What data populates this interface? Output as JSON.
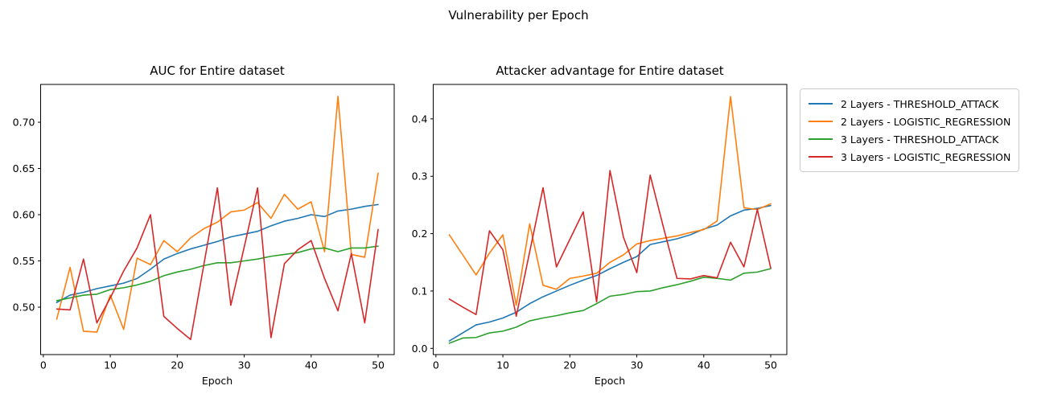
{
  "figure": {
    "suptitle": "Vulnerability per Epoch"
  },
  "colors": {
    "blue": "#1f77b4",
    "orange": "#ff7f0e",
    "green": "#2ca02c",
    "red": "#d62728",
    "spine": "#000000",
    "legend_border": "#cccccc"
  },
  "legend": {
    "items": [
      {
        "label": "2 Layers - THRESHOLD_ATTACK",
        "color": "#1f77b4"
      },
      {
        "label": "2 Layers - LOGISTIC_REGRESSION",
        "color": "#ff7f0e"
      },
      {
        "label": "3 Layers - THRESHOLD_ATTACK",
        "color": "#2ca02c"
      },
      {
        "label": "3 Layers - LOGISTIC_REGRESSION",
        "color": "#d62728"
      }
    ]
  },
  "chart_data": [
    {
      "type": "line",
      "title": "AUC for Entire dataset",
      "xlabel": "Epoch",
      "legend_position": "outside-right",
      "grid": false,
      "xlim": [
        -0.4,
        52.4
      ],
      "ylim": [
        0.4487,
        0.7409
      ],
      "xticks": [
        0,
        10,
        20,
        30,
        40,
        50
      ],
      "xtick_labels": [
        "0",
        "10",
        "20",
        "30",
        "40",
        "50"
      ],
      "yticks": [
        0.5,
        0.55,
        0.6,
        0.65,
        0.7
      ],
      "ytick_labels": [
        "0.50",
        "0.55",
        "0.60",
        "0.65",
        "0.70"
      ],
      "x": [
        2,
        4,
        6,
        8,
        10,
        12,
        14,
        16,
        18,
        20,
        22,
        24,
        26,
        28,
        30,
        32,
        34,
        36,
        38,
        40,
        42,
        44,
        46,
        48,
        50
      ],
      "series": [
        {
          "name": "2 Layers - THRESHOLD_ATTACK",
          "color": "#1f77b4",
          "values": [
            0.505,
            0.513,
            0.516,
            0.52,
            0.523,
            0.526,
            0.531,
            0.541,
            0.552,
            0.558,
            0.563,
            0.567,
            0.571,
            0.576,
            0.579,
            0.582,
            0.588,
            0.593,
            0.596,
            0.6,
            0.598,
            0.604,
            0.606,
            0.609,
            0.611
          ]
        },
        {
          "name": "2 Layers - LOGISTIC_REGRESSION",
          "color": "#ff7f0e",
          "values": [
            0.487,
            0.543,
            0.474,
            0.473,
            0.513,
            0.476,
            0.553,
            0.546,
            0.572,
            0.56,
            0.575,
            0.585,
            0.592,
            0.603,
            0.605,
            0.613,
            0.596,
            0.622,
            0.606,
            0.614,
            0.56,
            0.728,
            0.557,
            0.554,
            0.645
          ]
        },
        {
          "name": "3 Layers - THRESHOLD_ATTACK",
          "color": "#2ca02c",
          "values": [
            0.507,
            0.51,
            0.513,
            0.514,
            0.519,
            0.521,
            0.524,
            0.528,
            0.534,
            0.538,
            0.541,
            0.545,
            0.548,
            0.548,
            0.55,
            0.552,
            0.555,
            0.557,
            0.559,
            0.563,
            0.564,
            0.56,
            0.564,
            0.564,
            0.566
          ]
        },
        {
          "name": "3 Layers - LOGISTIC_REGRESSION",
          "color": "#d62728",
          "values": [
            0.498,
            0.497,
            0.552,
            0.483,
            0.51,
            0.539,
            0.564,
            0.6,
            0.49,
            0.477,
            0.465,
            0.547,
            0.629,
            0.502,
            0.565,
            0.629,
            0.467,
            0.547,
            0.562,
            0.572,
            0.531,
            0.496,
            0.558,
            0.483,
            0.584
          ]
        }
      ]
    },
    {
      "type": "line",
      "title": "Attacker advantage for Entire dataset",
      "xlabel": "Epoch",
      "grid": false,
      "xlim": [
        -0.4,
        52.4
      ],
      "ylim": [
        -0.0108,
        0.4601
      ],
      "xticks": [
        0,
        10,
        20,
        30,
        40,
        50
      ],
      "xtick_labels": [
        "0",
        "10",
        "20",
        "30",
        "40",
        "50"
      ],
      "yticks": [
        0.0,
        0.1,
        0.2,
        0.3,
        0.4
      ],
      "ytick_labels": [
        "0.0",
        "0.1",
        "0.2",
        "0.3",
        "0.4"
      ],
      "x": [
        2,
        4,
        6,
        8,
        10,
        12,
        14,
        16,
        18,
        20,
        22,
        24,
        26,
        28,
        30,
        32,
        34,
        36,
        38,
        40,
        42,
        44,
        46,
        48,
        50
      ],
      "series": [
        {
          "name": "2 Layers - THRESHOLD_ATTACK",
          "color": "#1f77b4",
          "values": [
            0.013,
            0.027,
            0.041,
            0.046,
            0.053,
            0.063,
            0.078,
            0.09,
            0.1,
            0.11,
            0.119,
            0.127,
            0.139,
            0.15,
            0.16,
            0.181,
            0.186,
            0.191,
            0.198,
            0.208,
            0.215,
            0.231,
            0.241,
            0.244,
            0.249
          ]
        },
        {
          "name": "2 Layers - LOGISTIC_REGRESSION",
          "color": "#ff7f0e",
          "values": [
            0.198,
            0.163,
            0.128,
            0.166,
            0.198,
            0.075,
            0.217,
            0.11,
            0.103,
            0.122,
            0.126,
            0.131,
            0.15,
            0.163,
            0.182,
            0.188,
            0.192,
            0.196,
            0.202,
            0.207,
            0.222,
            0.439,
            0.245,
            0.242,
            0.252
          ]
        },
        {
          "name": "3 Layers - THRESHOLD_ATTACK",
          "color": "#2ca02c",
          "values": [
            0.009,
            0.018,
            0.019,
            0.027,
            0.03,
            0.037,
            0.048,
            0.053,
            0.057,
            0.062,
            0.066,
            0.078,
            0.091,
            0.094,
            0.099,
            0.1,
            0.106,
            0.111,
            0.117,
            0.124,
            0.122,
            0.119,
            0.131,
            0.133,
            0.139
          ]
        },
        {
          "name": "3 Layers - LOGISTIC_REGRESSION",
          "color": "#d62728",
          "values": [
            0.086,
            0.072,
            0.059,
            0.205,
            0.172,
            0.056,
            0.168,
            0.28,
            0.142,
            0.19,
            0.238,
            0.081,
            0.31,
            0.194,
            0.132,
            0.302,
            0.21,
            0.122,
            0.121,
            0.127,
            0.123,
            0.185,
            0.142,
            0.242,
            0.14
          ]
        }
      ]
    }
  ]
}
